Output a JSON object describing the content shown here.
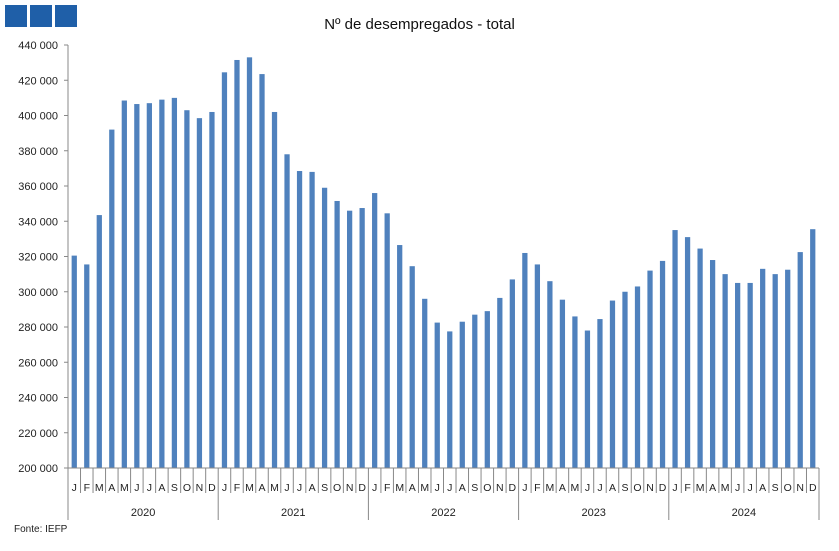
{
  "header": {
    "logo_name": "three-blue-squares-logo"
  },
  "source": "Fonte:  IEFP",
  "chart_data": {
    "type": "bar",
    "title": "Nº de desempregados - total",
    "xlabel": "",
    "ylabel": "",
    "ylim": [
      200000,
      440000
    ],
    "y_ticks": [
      200000,
      220000,
      240000,
      260000,
      280000,
      300000,
      320000,
      340000,
      360000,
      380000,
      400000,
      420000,
      440000
    ],
    "y_tick_labels": [
      "200 000",
      "220 000",
      "240 000",
      "260 000",
      "280 000",
      "300 000",
      "320 000",
      "340 000",
      "360 000",
      "380 000",
      "400 000",
      "420 000",
      "440 000"
    ],
    "grid": false,
    "bar_color": "#4f81bd",
    "month_labels": [
      "J",
      "F",
      "M",
      "A",
      "M",
      "J",
      "J",
      "A",
      "S",
      "O",
      "N",
      "D"
    ],
    "years": [
      "2020",
      "2021",
      "2022",
      "2023",
      "2024"
    ],
    "values": [
      320500,
      315500,
      343500,
      392000,
      408500,
      406500,
      407000,
      409000,
      410000,
      403000,
      398500,
      402000,
      424500,
      431500,
      433000,
      423500,
      402000,
      378000,
      368500,
      368000,
      359000,
      351500,
      346000,
      347500,
      356000,
      344500,
      326500,
      314500,
      296000,
      282500,
      277500,
      283000,
      287000,
      289000,
      296500,
      307000,
      322000,
      315500,
      306000,
      295500,
      286000,
      278000,
      284500,
      295000,
      300000,
      303000,
      312000,
      317500,
      335000,
      331000,
      324500,
      318000,
      310000,
      305000,
      305000,
      313000,
      310000,
      312500,
      322500,
      335500
    ]
  }
}
